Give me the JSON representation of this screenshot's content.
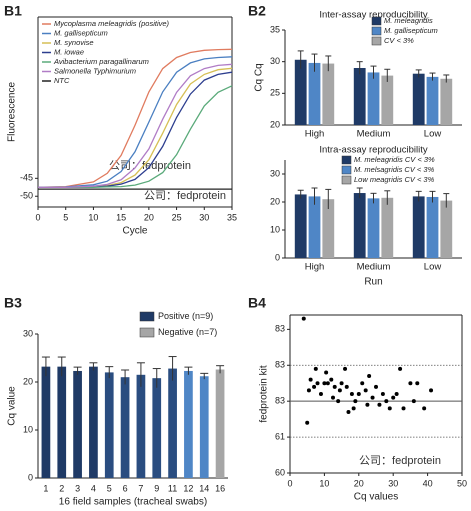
{
  "chart_data": [
    {
      "type": "line",
      "label": "B1",
      "xlabel": "Cycle",
      "ylabel": "Fluorescence",
      "x": [
        0,
        5,
        10,
        12.5,
        15,
        17.5,
        20,
        22.5,
        25,
        27.5,
        30,
        32.5,
        35
      ],
      "xlim": [
        0,
        35
      ],
      "xticks": [
        0,
        5,
        10,
        15,
        20,
        25,
        30,
        35
      ],
      "ylim": [
        -53,
        0
      ],
      "yticks": [
        -50,
        -45
      ],
      "annotations": [
        "公司：fedprotein",
        "公司：fedprotein"
      ],
      "series": [
        {
          "name": "Mycoplasma meleagridis (positive)",
          "color": "#e07b5f",
          "values": [
            -47.5,
            -47.3,
            -46.0,
            -43.6,
            -38.6,
            -30.2,
            -20.9,
            -14.4,
            -11.3,
            -9.9,
            -9.3,
            -9.1,
            -9.0
          ]
        },
        {
          "name": "M. gallisepticum",
          "color": "#4a7fc1",
          "values": [
            -47.5,
            -47.4,
            -46.8,
            -45.8,
            -43.1,
            -37.6,
            -29.3,
            -20.9,
            -15.4,
            -12.8,
            -11.7,
            -11.3,
            -11.1
          ]
        },
        {
          "name": "M. synovise",
          "color": "#d6bf55",
          "values": [
            -47.5,
            -47.5,
            -47.3,
            -47.0,
            -46.2,
            -44.1,
            -39.8,
            -32.4,
            -24.4,
            -18.7,
            -16.0,
            -14.7,
            -14.3
          ]
        },
        {
          "name": "M. iowae",
          "color": "#2d3e8f",
          "values": [
            -47.5,
            -47.5,
            -47.4,
            -47.2,
            -46.6,
            -45.3,
            -42.0,
            -36.1,
            -28.0,
            -21.5,
            -17.6,
            -16.0,
            -15.4
          ]
        },
        {
          "name": "Avibacterium paragallinarum",
          "color": "#5aaa7a",
          "values": [
            -47.5,
            -47.5,
            -47.5,
            -47.4,
            -47.3,
            -46.9,
            -45.8,
            -43.4,
            -38.4,
            -31.3,
            -24.8,
            -21.0,
            -19.2
          ]
        },
        {
          "name": "Salmonella Typhimurium",
          "color": "#b07cc6",
          "values": [
            -47.5,
            -47.5,
            -47.2,
            -46.7,
            -45.4,
            -42.1,
            -36.8,
            -28.5,
            -21.0,
            -16.4,
            -14.4,
            -13.5,
            -13.2
          ]
        },
        {
          "name": "NTC",
          "color": "#222222",
          "values": [
            -48,
            -48,
            -48,
            -48,
            -48,
            -48,
            -48,
            -48,
            -48,
            -48,
            -48,
            -48,
            -48
          ]
        }
      ]
    },
    {
      "type": "grouped_bar",
      "label": "B2",
      "title": "Inter-assay reproducibility",
      "ylabel": "Cq Cq",
      "categories": [
        "High",
        "Medium",
        "Low"
      ],
      "ylim": [
        20,
        35
      ],
      "yticks": [
        20,
        25,
        30,
        35
      ],
      "series": [
        {
          "name": "M. meleagridis",
          "color": "#1f3a66",
          "values": [
            30.3,
            29.0,
            28.1
          ],
          "errors": [
            1.4,
            1.0,
            0.6
          ]
        },
        {
          "name": "M. gallisepticum",
          "color": "#4f86c6",
          "values": [
            29.8,
            28.3,
            27.6
          ],
          "errors": [
            1.4,
            1.0,
            0.6
          ]
        },
        {
          "name": "CV < 3%",
          "color": "#a6a6a6",
          "values": [
            29.7,
            27.8,
            27.3
          ],
          "errors": [
            1.2,
            1.0,
            0.6
          ]
        }
      ]
    },
    {
      "type": "grouped_bar",
      "title": "Intra-assay reproducibility",
      "xlabel": "Run",
      "categories": [
        "High",
        "Medium",
        "Low"
      ],
      "ylim": [
        0,
        35
      ],
      "yticks": [
        0,
        10,
        20,
        30
      ],
      "series": [
        {
          "name": "M. meleagridis CV < 3%",
          "color": "#1f3a66",
          "values": [
            22.7,
            23.2,
            22.0
          ],
          "errors": [
            1.5,
            1.8,
            1.8
          ]
        },
        {
          "name": "M. melsagridis CV < 3%",
          "color": "#4f86c6",
          "values": [
            22.0,
            21.3,
            21.8
          ],
          "errors": [
            3.0,
            1.8,
            2.0
          ]
        },
        {
          "name": "Low meagridis CV < 3%",
          "color": "#a6a6a6",
          "values": [
            21.0,
            21.5,
            20.5
          ],
          "errors": [
            3.5,
            2.5,
            2.5
          ]
        }
      ]
    },
    {
      "type": "bar",
      "label": "B3",
      "ylabel": "Cq value",
      "xlabel": "16 field samples (tracheal swabs)",
      "categories": [
        "1",
        "2",
        "3",
        "4",
        "5",
        "6",
        "7",
        "9",
        "11",
        "12",
        "14",
        "16"
      ],
      "ylim": [
        0,
        30
      ],
      "yticks": [
        0,
        10,
        20,
        30
      ],
      "bar_colors": [
        "#1f3a66",
        "#1f3a66",
        "#1f3a66",
        "#1f3a66",
        "#2a4d80",
        "#2a4d80",
        "#2a4d80",
        "#2a4d80",
        "#2a4d80",
        "#4f86c6",
        "#4f86c6",
        "#a6a6a6"
      ],
      "series": [
        {
          "name": "Positive (n=9)",
          "color": "#1f3a66",
          "values": [
            23.2,
            23.2,
            22.3,
            23.2,
            22.0,
            21.0,
            21.5,
            20.8,
            22.8,
            22.3,
            21.2,
            null
          ],
          "errors": [
            2.0,
            2.0,
            0.8,
            0.8,
            1.2,
            1.5,
            2.5,
            2.0,
            2.5,
            0.8,
            0.6,
            null
          ]
        },
        {
          "name": "Negative (n=7)",
          "color": "#a6a6a6",
          "values": [
            null,
            null,
            null,
            null,
            null,
            null,
            null,
            null,
            null,
            null,
            null,
            22.6
          ],
          "errors": [
            null,
            null,
            null,
            null,
            null,
            null,
            null,
            null,
            null,
            null,
            null,
            0.8
          ]
        }
      ]
    },
    {
      "type": "scatter",
      "label": "B4",
      "xlabel": "Cq values",
      "ylabel": "fedprotein kit",
      "xlim": [
        0,
        50
      ],
      "xticks": [
        0,
        10,
        20,
        30,
        40,
        50
      ],
      "ylim": [
        60,
        64.4
      ],
      "yticks": [
        {
          "value": 64,
          "label": "83"
        },
        {
          "value": 63,
          "label": "83"
        },
        {
          "value": 62,
          "label": "83"
        },
        61,
        60
      ],
      "hlines": [
        {
          "value": 63,
          "style": "dotted"
        },
        {
          "value": 62,
          "style": "solid"
        },
        {
          "value": 61,
          "style": "dotted"
        }
      ],
      "annotations": [
        "公司：fedprotein"
      ],
      "color": "#000000",
      "x": [
        4,
        5,
        5.5,
        6,
        7,
        7.5,
        8,
        9,
        10,
        10.5,
        11,
        12,
        12.5,
        13,
        14,
        14.5,
        15,
        16,
        16.5,
        17,
        18,
        18.5,
        19,
        20,
        21,
        22,
        22.5,
        23,
        24,
        25,
        26,
        27,
        28,
        29,
        30,
        31,
        32,
        33,
        35,
        36,
        37,
        39,
        41
      ],
      "values": [
        64.3,
        61.4,
        62.3,
        62.6,
        62.4,
        62.9,
        62.5,
        62.2,
        62.5,
        62.8,
        62.5,
        62.6,
        62.1,
        62.4,
        62.0,
        62.3,
        62.5,
        62.9,
        62.4,
        61.7,
        62.2,
        61.8,
        62.0,
        62.2,
        62.5,
        62.3,
        61.9,
        62.7,
        62.1,
        62.4,
        61.9,
        62.2,
        62.0,
        61.8,
        62.1,
        62.2,
        62.9,
        61.8,
        62.5,
        62.0,
        62.5,
        61.8,
        62.3
      ]
    }
  ]
}
